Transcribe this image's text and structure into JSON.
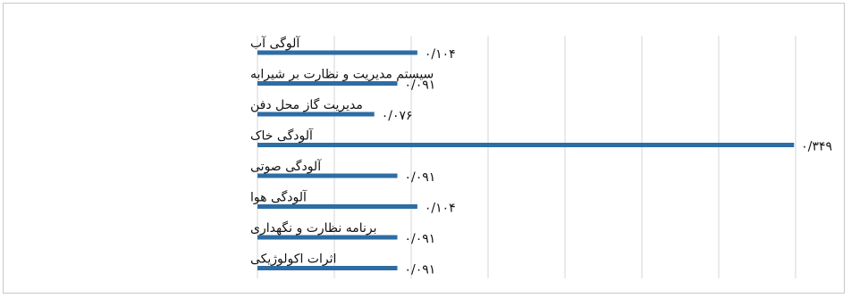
{
  "chart_data": {
    "type": "bar",
    "orientation": "horizontal",
    "categories": [
      "آلوگی آب",
      "سیستم مدیریت و نظارت بر شیرابه",
      "مدیریت گاز محل دفن",
      "آلودگی خاک",
      "آلودگی صوتی",
      "آلودگی هوا",
      "برنامه نظارت و نگهداری",
      "اثرات اکولوژیکی"
    ],
    "values": [
      0.104,
      0.091,
      0.076,
      0.349,
      0.091,
      0.104,
      0.091,
      0.091
    ],
    "value_labels": [
      "۰/۱۰۴",
      "۰/۰۹۱",
      "۰/۰۷۶",
      "۰/۳۴۹",
      "۰/۰۹۱",
      "۰/۱۰۴",
      "۰/۰۹۱",
      "۰/۰۹۱"
    ],
    "xlim": [
      0,
      0.35
    ],
    "grid": true,
    "bar_color": "#2e6da4",
    "gridline_color": "#d4d4d4"
  }
}
